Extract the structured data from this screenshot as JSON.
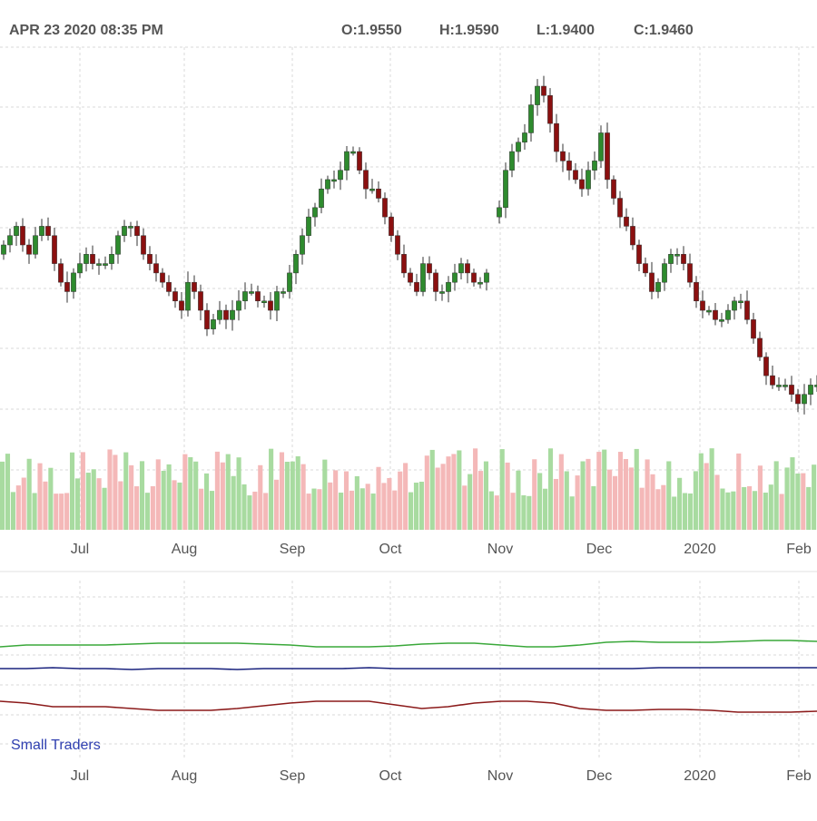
{
  "header": {
    "timestamp": "APR 23 2020 08:35 PM",
    "open": "O:1.9550",
    "high": "H:1.9590",
    "low": "L:1.9400",
    "close": "C:1.9460"
  },
  "chart_data": [
    {
      "type": "candlestick",
      "title": "",
      "grid": true,
      "x_tick_labels": [
        "Jul",
        "Aug",
        "Sep",
        "Oct",
        "Nov",
        "Dec",
        "2020",
        "Feb"
      ],
      "close_path": [
        2.09,
        2.1,
        2.11,
        2.12,
        2.1,
        2.09,
        2.11,
        2.12,
        2.11,
        2.08,
        2.06,
        2.05,
        2.07,
        2.08,
        2.09,
        2.08,
        2.08,
        2.08,
        2.09,
        2.11,
        2.12,
        2.12,
        2.11,
        2.09,
        2.08,
        2.07,
        2.06,
        2.05,
        2.04,
        2.03,
        2.06,
        2.05,
        2.03,
        2.01,
        2.02,
        2.03,
        2.02,
        2.03,
        2.04,
        2.05,
        2.05,
        2.04,
        2.04,
        2.03,
        2.05,
        2.05,
        2.07,
        2.09,
        2.11,
        2.13,
        2.14,
        2.16,
        2.17,
        2.17,
        2.18,
        2.2,
        2.2,
        2.18,
        2.16,
        2.16,
        2.15,
        2.13,
        2.11,
        2.09,
        2.07,
        2.06,
        2.05,
        2.08,
        2.07,
        2.05,
        2.05,
        2.06,
        2.07,
        2.08,
        2.07,
        2.06,
        2.06,
        2.07,
        null,
        2.14,
        2.18,
        2.2,
        2.21,
        2.22,
        2.25,
        2.27,
        2.26,
        2.23,
        2.2,
        2.19,
        2.18,
        2.17,
        2.16,
        2.18,
        2.19,
        2.22,
        2.17,
        2.15,
        2.13,
        2.12,
        2.1,
        2.08,
        2.07,
        2.05,
        2.06,
        2.08,
        2.09,
        2.09,
        2.08,
        2.06,
        2.04,
        2.03,
        2.03,
        2.02,
        2.02,
        2.03,
        2.04,
        2.04,
        2.02,
        2.0,
        1.98,
        1.96,
        1.95,
        1.95,
        1.95,
        1.94,
        1.93,
        1.94,
        1.95,
        1.95
      ],
      "close_range": [
        1.93,
        2.27
      ],
      "volume_colors": [
        "up",
        "down"
      ]
    },
    {
      "type": "line",
      "x_tick_labels": [
        "Jul",
        "Aug",
        "Sep",
        "Oct",
        "Nov",
        "Dec",
        "2020",
        "Feb"
      ],
      "legend_label": "Small Traders",
      "series": [
        {
          "color": "#3aa83a",
          "values": [
            24,
            26,
            26,
            26,
            26,
            27,
            28,
            28,
            28,
            28,
            27,
            26,
            24,
            24,
            24,
            25,
            27,
            28,
            28,
            26,
            24,
            24,
            26,
            29,
            30,
            29,
            29,
            29,
            30,
            31,
            31,
            30
          ]
        },
        {
          "color": "#1a237e",
          "values": [
            0,
            0,
            1,
            0,
            0,
            -1,
            0,
            0,
            0,
            -1,
            0,
            0,
            0,
            0,
            1,
            0,
            0,
            0,
            0,
            0,
            0,
            0,
            0,
            0,
            0,
            1,
            1,
            1,
            1,
            1,
            1,
            1
          ]
        },
        {
          "color": "#8b1a1a",
          "values": [
            -36,
            -38,
            -42,
            -42,
            -42,
            -44,
            -46,
            -46,
            -46,
            -44,
            -41,
            -38,
            -36,
            -36,
            -36,
            -40,
            -44,
            -42,
            -38,
            -36,
            -36,
            -38,
            -44,
            -46,
            -46,
            -45,
            -45,
            -46,
            -48,
            -48,
            -48,
            -47
          ]
        }
      ]
    }
  ]
}
